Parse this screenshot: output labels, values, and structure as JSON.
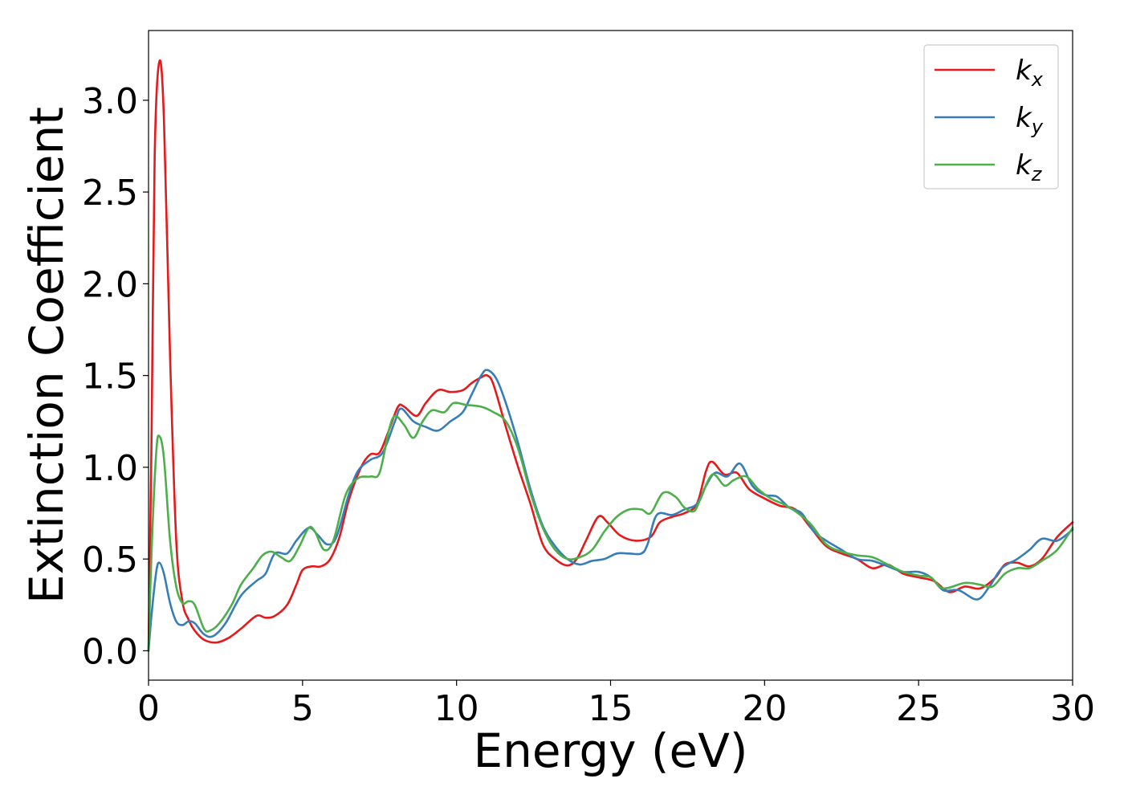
{
  "chart_data": {
    "type": "line",
    "title": "",
    "xlabel": "Energy (eV)",
    "ylabel": "Extinction Coefficient",
    "xlim": [
      0,
      30
    ],
    "ylim": [
      -0.16,
      3.38
    ],
    "xticks": [
      0,
      5,
      10,
      15,
      20,
      25,
      30
    ],
    "xtick_labels": [
      "0",
      "5",
      "10",
      "15",
      "20",
      "25",
      "30"
    ],
    "yticks": [
      0.0,
      0.5,
      1.0,
      1.5,
      2.0,
      2.5,
      3.0
    ],
    "ytick_labels": [
      "0.0",
      "0.5",
      "1.0",
      "1.5",
      "2.0",
      "2.5",
      "3.0"
    ],
    "grid": false,
    "legend_position": "top-right",
    "series": [
      {
        "name": "k",
        "subscript": "x",
        "color": "#e41a1c",
        "points": [
          [
            0,
            0.0
          ],
          [
            0.1,
            1.2
          ],
          [
            0.2,
            2.7
          ],
          [
            0.35,
            3.21
          ],
          [
            0.5,
            2.9
          ],
          [
            0.7,
            1.6
          ],
          [
            0.9,
            0.6
          ],
          [
            1.1,
            0.27
          ],
          [
            1.3,
            0.17
          ],
          [
            1.5,
            0.11
          ],
          [
            1.8,
            0.06
          ],
          [
            2.2,
            0.045
          ],
          [
            2.6,
            0.07
          ],
          [
            3.0,
            0.12
          ],
          [
            3.5,
            0.19
          ],
          [
            3.8,
            0.18
          ],
          [
            4.1,
            0.19
          ],
          [
            4.5,
            0.25
          ],
          [
            4.8,
            0.36
          ],
          [
            5.0,
            0.44
          ],
          [
            5.3,
            0.46
          ],
          [
            5.6,
            0.46
          ],
          [
            5.9,
            0.5
          ],
          [
            6.2,
            0.62
          ],
          [
            6.5,
            0.82
          ],
          [
            6.9,
            1.0
          ],
          [
            7.2,
            1.07
          ],
          [
            7.5,
            1.08
          ],
          [
            7.8,
            1.2
          ],
          [
            8.1,
            1.33
          ],
          [
            8.3,
            1.33
          ],
          [
            8.7,
            1.28
          ],
          [
            9.0,
            1.35
          ],
          [
            9.4,
            1.42
          ],
          [
            9.8,
            1.41
          ],
          [
            10.2,
            1.42
          ],
          [
            10.5,
            1.46
          ],
          [
            10.8,
            1.49
          ],
          [
            11.0,
            1.5
          ],
          [
            11.2,
            1.45
          ],
          [
            11.6,
            1.22
          ],
          [
            12.0,
            1.0
          ],
          [
            12.4,
            0.8
          ],
          [
            12.8,
            0.58
          ],
          [
            13.2,
            0.5
          ],
          [
            13.6,
            0.465
          ],
          [
            13.9,
            0.5
          ],
          [
            14.2,
            0.6
          ],
          [
            14.6,
            0.73
          ],
          [
            14.9,
            0.7
          ],
          [
            15.3,
            0.63
          ],
          [
            15.8,
            0.6
          ],
          [
            16.3,
            0.62
          ],
          [
            16.6,
            0.7
          ],
          [
            17.0,
            0.73
          ],
          [
            17.4,
            0.75
          ],
          [
            17.8,
            0.8
          ],
          [
            18.1,
            0.98
          ],
          [
            18.3,
            1.03
          ],
          [
            18.7,
            0.96
          ],
          [
            19.1,
            0.97
          ],
          [
            19.5,
            0.88
          ],
          [
            20.0,
            0.83
          ],
          [
            20.5,
            0.79
          ],
          [
            21.0,
            0.77
          ],
          [
            21.5,
            0.67
          ],
          [
            22.0,
            0.57
          ],
          [
            22.5,
            0.53
          ],
          [
            23.0,
            0.5
          ],
          [
            23.5,
            0.45
          ],
          [
            24.0,
            0.47
          ],
          [
            24.5,
            0.42
          ],
          [
            25.0,
            0.4
          ],
          [
            25.5,
            0.38
          ],
          [
            26.0,
            0.32
          ],
          [
            26.5,
            0.35
          ],
          [
            27.0,
            0.34
          ],
          [
            27.5,
            0.4
          ],
          [
            27.8,
            0.47
          ],
          [
            28.2,
            0.48
          ],
          [
            28.6,
            0.46
          ],
          [
            29.0,
            0.5
          ],
          [
            29.5,
            0.62
          ],
          [
            30.0,
            0.7
          ]
        ]
      },
      {
        "name": "k",
        "subscript": "y",
        "color": "#377eb8",
        "points": [
          [
            0,
            0.0
          ],
          [
            0.1,
            0.2
          ],
          [
            0.25,
            0.43
          ],
          [
            0.35,
            0.48
          ],
          [
            0.5,
            0.42
          ],
          [
            0.7,
            0.26
          ],
          [
            0.9,
            0.16
          ],
          [
            1.1,
            0.14
          ],
          [
            1.3,
            0.16
          ],
          [
            1.5,
            0.15
          ],
          [
            1.8,
            0.09
          ],
          [
            2.1,
            0.08
          ],
          [
            2.5,
            0.15
          ],
          [
            3.0,
            0.3
          ],
          [
            3.5,
            0.38
          ],
          [
            3.8,
            0.42
          ],
          [
            4.1,
            0.53
          ],
          [
            4.5,
            0.53
          ],
          [
            4.8,
            0.6
          ],
          [
            5.2,
            0.67
          ],
          [
            5.5,
            0.63
          ],
          [
            5.8,
            0.58
          ],
          [
            6.1,
            0.62
          ],
          [
            6.5,
            0.85
          ],
          [
            6.8,
            0.98
          ],
          [
            7.2,
            1.04
          ],
          [
            7.6,
            1.08
          ],
          [
            8.0,
            1.25
          ],
          [
            8.2,
            1.32
          ],
          [
            8.6,
            1.25
          ],
          [
            9.0,
            1.22
          ],
          [
            9.4,
            1.2
          ],
          [
            9.8,
            1.25
          ],
          [
            10.2,
            1.3
          ],
          [
            10.5,
            1.4
          ],
          [
            10.8,
            1.5
          ],
          [
            11.0,
            1.53
          ],
          [
            11.3,
            1.48
          ],
          [
            11.6,
            1.35
          ],
          [
            12.0,
            1.13
          ],
          [
            12.4,
            0.88
          ],
          [
            12.8,
            0.68
          ],
          [
            13.2,
            0.57
          ],
          [
            13.6,
            0.5
          ],
          [
            14.0,
            0.47
          ],
          [
            14.4,
            0.49
          ],
          [
            14.8,
            0.5
          ],
          [
            15.2,
            0.53
          ],
          [
            15.6,
            0.53
          ],
          [
            16.0,
            0.53
          ],
          [
            16.2,
            0.58
          ],
          [
            16.5,
            0.74
          ],
          [
            17.0,
            0.74
          ],
          [
            17.4,
            0.77
          ],
          [
            17.8,
            0.8
          ],
          [
            18.1,
            0.9
          ],
          [
            18.4,
            0.97
          ],
          [
            18.8,
            0.95
          ],
          [
            19.2,
            1.02
          ],
          [
            19.6,
            0.9
          ],
          [
            20.0,
            0.85
          ],
          [
            20.4,
            0.84
          ],
          [
            20.8,
            0.78
          ],
          [
            21.2,
            0.75
          ],
          [
            21.6,
            0.65
          ],
          [
            22.0,
            0.6
          ],
          [
            22.5,
            0.55
          ],
          [
            23.0,
            0.5
          ],
          [
            23.5,
            0.49
          ],
          [
            24.0,
            0.46
          ],
          [
            24.5,
            0.43
          ],
          [
            25.0,
            0.43
          ],
          [
            25.4,
            0.4
          ],
          [
            25.8,
            0.33
          ],
          [
            26.3,
            0.33
          ],
          [
            26.9,
            0.28
          ],
          [
            27.3,
            0.35
          ],
          [
            27.7,
            0.45
          ],
          [
            28.2,
            0.5
          ],
          [
            28.6,
            0.55
          ],
          [
            29.0,
            0.61
          ],
          [
            29.5,
            0.6
          ],
          [
            30.0,
            0.66
          ]
        ]
      },
      {
        "name": "k",
        "subscript": "z",
        "color": "#4daf4a",
        "points": [
          [
            0,
            0.0
          ],
          [
            0.1,
            0.55
          ],
          [
            0.25,
            1.08
          ],
          [
            0.35,
            1.17
          ],
          [
            0.5,
            1.05
          ],
          [
            0.7,
            0.6
          ],
          [
            0.9,
            0.35
          ],
          [
            1.1,
            0.26
          ],
          [
            1.3,
            0.27
          ],
          [
            1.5,
            0.25
          ],
          [
            1.8,
            0.12
          ],
          [
            2.0,
            0.11
          ],
          [
            2.3,
            0.15
          ],
          [
            2.7,
            0.25
          ],
          [
            3.0,
            0.36
          ],
          [
            3.4,
            0.45
          ],
          [
            3.7,
            0.52
          ],
          [
            4.0,
            0.54
          ],
          [
            4.3,
            0.51
          ],
          [
            4.6,
            0.49
          ],
          [
            4.9,
            0.57
          ],
          [
            5.2,
            0.67
          ],
          [
            5.4,
            0.65
          ],
          [
            5.7,
            0.55
          ],
          [
            6.0,
            0.6
          ],
          [
            6.4,
            0.85
          ],
          [
            6.8,
            0.94
          ],
          [
            7.2,
            0.95
          ],
          [
            7.5,
            0.97
          ],
          [
            7.8,
            1.2
          ],
          [
            8.0,
            1.28
          ],
          [
            8.3,
            1.23
          ],
          [
            8.6,
            1.16
          ],
          [
            8.9,
            1.25
          ],
          [
            9.2,
            1.31
          ],
          [
            9.6,
            1.3
          ],
          [
            9.9,
            1.35
          ],
          [
            10.3,
            1.34
          ],
          [
            10.8,
            1.33
          ],
          [
            11.2,
            1.3
          ],
          [
            11.6,
            1.25
          ],
          [
            12.0,
            1.1
          ],
          [
            12.4,
            0.86
          ],
          [
            12.8,
            0.67
          ],
          [
            13.2,
            0.55
          ],
          [
            13.6,
            0.5
          ],
          [
            14.0,
            0.51
          ],
          [
            14.4,
            0.55
          ],
          [
            14.8,
            0.65
          ],
          [
            15.2,
            0.73
          ],
          [
            15.6,
            0.77
          ],
          [
            16.0,
            0.77
          ],
          [
            16.3,
            0.75
          ],
          [
            16.7,
            0.86
          ],
          [
            17.1,
            0.84
          ],
          [
            17.4,
            0.78
          ],
          [
            17.7,
            0.76
          ],
          [
            17.9,
            0.82
          ],
          [
            18.3,
            0.96
          ],
          [
            18.7,
            0.9
          ],
          [
            19.0,
            0.93
          ],
          [
            19.4,
            0.95
          ],
          [
            19.8,
            0.88
          ],
          [
            20.2,
            0.83
          ],
          [
            20.6,
            0.8
          ],
          [
            21.0,
            0.76
          ],
          [
            21.5,
            0.69
          ],
          [
            22.0,
            0.58
          ],
          [
            22.5,
            0.54
          ],
          [
            23.0,
            0.52
          ],
          [
            23.5,
            0.51
          ],
          [
            24.0,
            0.47
          ],
          [
            24.5,
            0.43
          ],
          [
            25.0,
            0.41
          ],
          [
            25.4,
            0.4
          ],
          [
            25.8,
            0.34
          ],
          [
            26.5,
            0.37
          ],
          [
            27.0,
            0.36
          ],
          [
            27.4,
            0.35
          ],
          [
            27.8,
            0.42
          ],
          [
            28.2,
            0.45
          ],
          [
            28.6,
            0.45
          ],
          [
            29.0,
            0.49
          ],
          [
            29.5,
            0.55
          ],
          [
            30.0,
            0.67
          ]
        ]
      }
    ]
  }
}
